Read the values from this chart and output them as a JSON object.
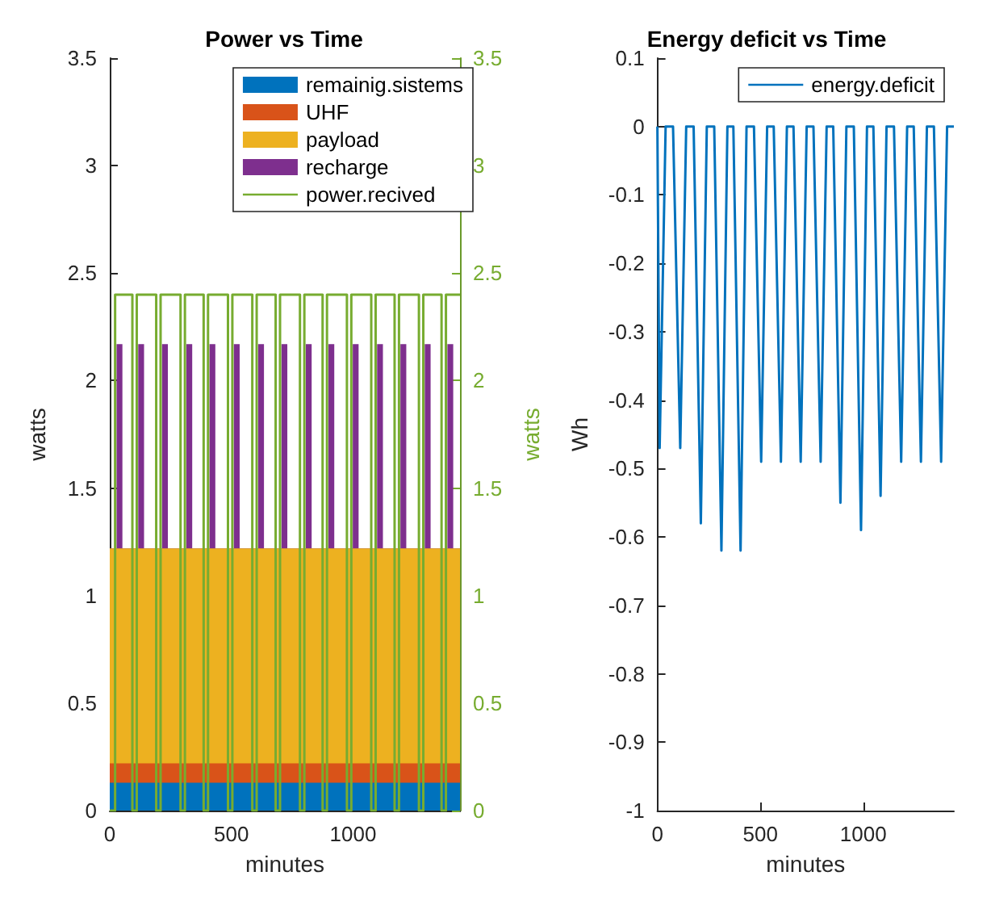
{
  "chart_data": [
    {
      "type": "area",
      "title": "Power vs Time",
      "xlabel": "minutes",
      "ylabel": "watts",
      "y2label": "watts",
      "stacked": true,
      "legend": "top right",
      "x": [
        0,
        28,
        52,
        117,
        141,
        215,
        239,
        315,
        339,
        410,
        434,
        510,
        534,
        610,
        634,
        706,
        730,
        806,
        830,
        899,
        923,
        999,
        1023,
        1099,
        1123,
        1195,
        1219,
        1295,
        1319,
        1388,
        1412,
        1440
      ],
      "series": [
        {
          "name": "remainig.sistems",
          "color": "#0072bd",
          "values": [
            0.13,
            0.13,
            0.13,
            0.13,
            0.13,
            0.13,
            0.13,
            0.13,
            0.13,
            0.13,
            0.13,
            0.13,
            0.13,
            0.13,
            0.13,
            0.13,
            0.13,
            0.13,
            0.13,
            0.13,
            0.13,
            0.13,
            0.13,
            0.13,
            0.13,
            0.13,
            0.13,
            0.13,
            0.13,
            0.13,
            0.13,
            0.13
          ]
        },
        {
          "name": "UHF",
          "color": "#d95319",
          "values": [
            0.09,
            0.09,
            0.09,
            0.09,
            0.09,
            0.09,
            0.09,
            0.09,
            0.09,
            0.09,
            0.09,
            0.09,
            0.09,
            0.09,
            0.09,
            0.09,
            0.09,
            0.09,
            0.09,
            0.09,
            0.09,
            0.09,
            0.09,
            0.09,
            0.09,
            0.09,
            0.09,
            0.09,
            0.09,
            0.09,
            0.09,
            0.09
          ]
        },
        {
          "name": "payload",
          "color": "#edb120",
          "values": [
            1.0,
            1.0,
            1.0,
            1.0,
            1.0,
            1.0,
            1.0,
            1.0,
            1.0,
            1.0,
            1.0,
            1.0,
            1.0,
            1.0,
            1.0,
            1.0,
            1.0,
            1.0,
            1.0,
            1.0,
            1.0,
            1.0,
            1.0,
            1.0,
            1.0,
            1.0,
            1.0,
            1.0,
            1.0,
            1.0,
            1.0,
            1.0
          ]
        },
        {
          "name": "recharge",
          "color": "#7e2f8e",
          "values": [
            0,
            0.95,
            0,
            0.95,
            0,
            0.95,
            0,
            0.95,
            0,
            0.95,
            0,
            0.95,
            0,
            0.95,
            0,
            0.95,
            0,
            0.95,
            0,
            0.95,
            0,
            0.95,
            0,
            0.95,
            0,
            0.95,
            0,
            0.95,
            0,
            0.95,
            0,
            0
          ]
        },
        {
          "name": "power.recived",
          "type": "step",
          "axis": "y2",
          "color": "#77ac30",
          "x": [
            0,
            22,
            93,
            111,
            191,
            209,
            291,
            309,
            386,
            404,
            486,
            504,
            586,
            604,
            682,
            700,
            782,
            800,
            875,
            893,
            975,
            993,
            1075,
            1093,
            1171,
            1189,
            1271,
            1289,
            1364,
            1382,
            1440
          ],
          "values": [
            0,
            2.4,
            0,
            2.4,
            0,
            2.4,
            0,
            2.4,
            0,
            2.4,
            0,
            2.4,
            0,
            2.4,
            0,
            2.4,
            0,
            2.4,
            0,
            2.4,
            0,
            2.4,
            0,
            2.4,
            0,
            2.4,
            0,
            2.4,
            0,
            2.4,
            2.4
          ]
        }
      ],
      "xlim": [
        0,
        1440
      ],
      "xticks": [
        0,
        500,
        1000
      ],
      "ylim": [
        0,
        3.5
      ],
      "yticks": [
        0,
        0.5,
        1,
        1.5,
        2,
        2.5,
        3,
        3.5
      ],
      "y2lim": [
        0,
        3.5
      ],
      "y2ticks": [
        0,
        0.5,
        1,
        1.5,
        2,
        2.5,
        3,
        3.5
      ]
    },
    {
      "type": "line",
      "title": "Energy deficit vs Time",
      "xlabel": "minutes",
      "ylabel": "Wh",
      "legend": "top right",
      "series": [
        {
          "name": "energy.deficit",
          "color": "#0072bd",
          "x": [
            0,
            11,
            40,
            76,
            111,
            140,
            176,
            211,
            240,
            276,
            311,
            340,
            369,
            404,
            433,
            469,
            504,
            533,
            565,
            600,
            629,
            661,
            696,
            725,
            758,
            793,
            822,
            854,
            889,
            918,
            954,
            989,
            1018,
            1049,
            1084,
            1113,
            1149,
            1184,
            1213,
            1245,
            1280,
            1309,
            1343,
            1378,
            1407,
            1440
          ],
          "values": [
            0,
            -0.47,
            0,
            0,
            -0.47,
            0,
            0,
            -0.58,
            0,
            0,
            -0.62,
            0,
            0,
            -0.62,
            0,
            0,
            -0.49,
            0,
            0,
            -0.49,
            0,
            0,
            -0.49,
            0,
            0,
            -0.49,
            0,
            0,
            -0.55,
            0,
            0,
            -0.59,
            0,
            0,
            -0.54,
            0,
            0,
            -0.49,
            0,
            0,
            -0.49,
            0,
            0,
            -0.49,
            0,
            0
          ]
        }
      ],
      "xlim": [
        0,
        1440
      ],
      "xticks": [
        0,
        500,
        1000
      ],
      "ylim": [
        -1,
        0.1
      ],
      "yticks": [
        -1,
        -0.9,
        -0.8,
        -0.7,
        -0.6,
        -0.5,
        -0.4,
        -0.3,
        -0.2,
        -0.1,
        0,
        0.1
      ]
    }
  ]
}
